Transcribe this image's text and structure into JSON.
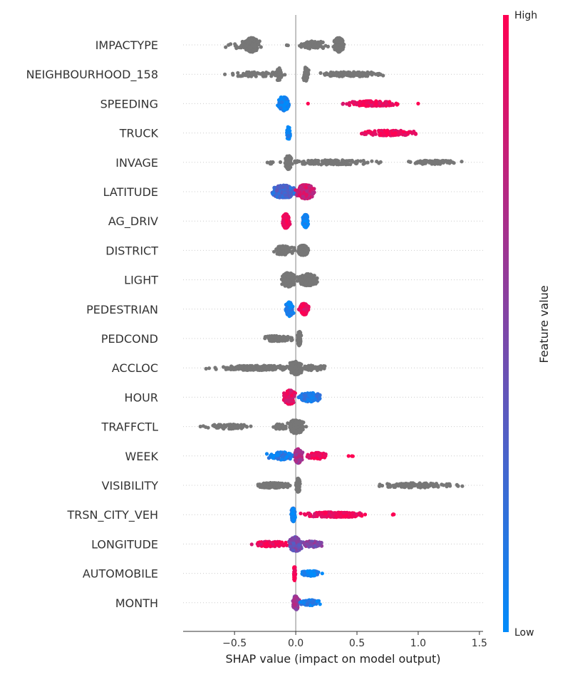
{
  "chart_data": {
    "type": "scatter",
    "subtype": "shap-beeswarm",
    "title": "",
    "xlabel": "SHAP value (impact on model output)",
    "xlim": [
      -0.92,
      1.53
    ],
    "x_ticks": [
      {
        "value": -0.5,
        "label": "−0.5"
      },
      {
        "value": 0.0,
        "label": "0.0"
      },
      {
        "value": 0.5,
        "label": "0.5"
      },
      {
        "value": 1.0,
        "label": "1.0"
      },
      {
        "value": 1.5,
        "label": "1.5"
      }
    ],
    "grid": false,
    "colorbar": {
      "title": "Feature value",
      "high_label": "High",
      "low_label": "Low",
      "low_color": "#008bfb",
      "high_color": "#ff0052",
      "no_value_color": "#777777"
    },
    "features": [
      {
        "name": "IMPACTYPE",
        "colored": false,
        "clusters": [
          {
            "c": -0.36,
            "spread": 0.07,
            "n": 220,
            "h": 0.55
          },
          {
            "c": -0.42,
            "spread": 0.2,
            "n": 40,
            "h": 0.3
          },
          {
            "c": -0.06,
            "spread": 0.02,
            "n": 2,
            "h": 0.05
          },
          {
            "c": 0.35,
            "spread": 0.05,
            "n": 200,
            "h": 0.55
          },
          {
            "c": 0.15,
            "spread": 0.17,
            "n": 60,
            "h": 0.3
          }
        ]
      },
      {
        "name": "NEIGHBOURHOOD_158",
        "colored": false,
        "clusters": [
          {
            "c": -0.32,
            "spread": 0.32,
            "n": 70,
            "h": 0.18
          },
          {
            "c": -0.14,
            "spread": 0.03,
            "n": 50,
            "h": 0.5
          },
          {
            "c": 0.08,
            "spread": 0.03,
            "n": 50,
            "h": 0.55
          },
          {
            "c": 0.45,
            "spread": 0.38,
            "n": 110,
            "h": 0.18
          }
        ]
      },
      {
        "name": "SPEEDING",
        "colored": true,
        "clusters": [
          {
            "c": -0.1,
            "spread": 0.06,
            "n": 130,
            "h": 0.55,
            "v": 0.05
          },
          {
            "c": 0.62,
            "spread": 0.28,
            "n": 170,
            "h": 0.2,
            "v": 0.95
          },
          {
            "c": 1.0,
            "spread": 0.0,
            "n": 1,
            "h": 0.0,
            "v": 1.0
          },
          {
            "c": 0.1,
            "spread": 0.0,
            "n": 1,
            "h": 0.0,
            "v": 1.0
          }
        ]
      },
      {
        "name": "TRUCK",
        "colored": true,
        "clusters": [
          {
            "c": -0.06,
            "spread": 0.02,
            "n": 60,
            "h": 0.5,
            "v": 0.05
          },
          {
            "c": 0.77,
            "spread": 0.26,
            "n": 180,
            "h": 0.2,
            "v": 0.95
          }
        ]
      },
      {
        "name": "INVAGE",
        "colored": false,
        "clusters": [
          {
            "c": -0.06,
            "spread": 0.03,
            "n": 80,
            "h": 0.55
          },
          {
            "c": 0.3,
            "spread": 0.5,
            "n": 120,
            "h": 0.18
          },
          {
            "c": 1.12,
            "spread": 0.28,
            "n": 80,
            "h": 0.15
          },
          {
            "c": -0.2,
            "spread": 0.04,
            "n": 10,
            "h": 0.12
          }
        ]
      },
      {
        "name": "LATITUDE",
        "colored": true,
        "clusters": [
          {
            "c": -0.1,
            "spread": 0.12,
            "n": 220,
            "h": 0.5,
            "v": 0.25
          },
          {
            "c": 0.08,
            "spread": 0.09,
            "n": 200,
            "h": 0.55,
            "v": 0.8
          }
        ]
      },
      {
        "name": "AG_DRIV",
        "colored": true,
        "clusters": [
          {
            "c": -0.08,
            "spread": 0.04,
            "n": 150,
            "h": 0.55,
            "v": 0.95
          },
          {
            "c": 0.08,
            "spread": 0.03,
            "n": 120,
            "h": 0.5,
            "v": 0.05
          }
        ]
      },
      {
        "name": "DISTRICT",
        "colored": false,
        "clusters": [
          {
            "c": -0.1,
            "spread": 0.1,
            "n": 110,
            "h": 0.35
          },
          {
            "c": 0.06,
            "spread": 0.06,
            "n": 110,
            "h": 0.4
          }
        ]
      },
      {
        "name": "LIGHT",
        "colored": false,
        "clusters": [
          {
            "c": -0.06,
            "spread": 0.08,
            "n": 160,
            "h": 0.55
          },
          {
            "c": 0.1,
            "spread": 0.1,
            "n": 140,
            "h": 0.45
          }
        ]
      },
      {
        "name": "PEDESTRIAN",
        "colored": true,
        "clusters": [
          {
            "c": -0.05,
            "spread": 0.04,
            "n": 110,
            "h": 0.55,
            "v": 0.05
          },
          {
            "c": 0.07,
            "spread": 0.05,
            "n": 110,
            "h": 0.45,
            "v": 0.95
          }
        ]
      },
      {
        "name": "PEDCOND",
        "colored": false,
        "clusters": [
          {
            "c": -0.15,
            "spread": 0.16,
            "n": 90,
            "h": 0.22
          },
          {
            "c": 0.03,
            "spread": 0.02,
            "n": 90,
            "h": 0.55
          }
        ]
      },
      {
        "name": "ACCLOC",
        "colored": false,
        "clusters": [
          {
            "c": -0.3,
            "spread": 0.48,
            "n": 230,
            "h": 0.18
          },
          {
            "c": 0.0,
            "spread": 0.07,
            "n": 120,
            "h": 0.55
          },
          {
            "c": 0.15,
            "spread": 0.15,
            "n": 50,
            "h": 0.2
          }
        ]
      },
      {
        "name": "HOUR",
        "colored": true,
        "clusters": [
          {
            "c": -0.05,
            "spread": 0.06,
            "n": 150,
            "h": 0.55,
            "v": 0.9
          },
          {
            "c": 0.12,
            "spread": 0.12,
            "n": 120,
            "h": 0.35,
            "v": 0.15
          }
        ]
      },
      {
        "name": "TRAFFCTL",
        "colored": false,
        "clusters": [
          {
            "c": -0.55,
            "spread": 0.25,
            "n": 80,
            "h": 0.18
          },
          {
            "c": 0.0,
            "spread": 0.09,
            "n": 150,
            "h": 0.55
          },
          {
            "c": -0.12,
            "spread": 0.09,
            "n": 40,
            "h": 0.2
          }
        ]
      },
      {
        "name": "WEEK",
        "colored": true,
        "clusters": [
          {
            "c": -0.12,
            "spread": 0.13,
            "n": 90,
            "h": 0.3,
            "v": 0.1
          },
          {
            "c": 0.02,
            "spread": 0.04,
            "n": 120,
            "h": 0.55,
            "v": 0.65
          },
          {
            "c": 0.18,
            "spread": 0.1,
            "n": 90,
            "h": 0.25,
            "v": 0.95
          },
          {
            "c": 0.45,
            "spread": 0.04,
            "n": 3,
            "h": 0.05,
            "v": 1.0
          }
        ]
      },
      {
        "name": "VISIBILITY",
        "colored": false,
        "clusters": [
          {
            "c": -0.18,
            "spread": 0.2,
            "n": 140,
            "h": 0.2
          },
          {
            "c": 0.02,
            "spread": 0.02,
            "n": 80,
            "h": 0.55
          },
          {
            "c": 1.0,
            "spread": 0.41,
            "n": 110,
            "h": 0.18
          }
        ]
      },
      {
        "name": "TRSN_CITY_VEH",
        "colored": true,
        "clusters": [
          {
            "c": -0.02,
            "spread": 0.02,
            "n": 100,
            "h": 0.55,
            "v": 0.05
          },
          {
            "c": 0.32,
            "spread": 0.32,
            "n": 220,
            "h": 0.2,
            "v": 0.95
          },
          {
            "c": 0.8,
            "spread": 0.02,
            "n": 3,
            "h": 0.05,
            "v": 1.0
          }
        ]
      },
      {
        "name": "LONGITUDE",
        "colored": true,
        "clusters": [
          {
            "c": -0.2,
            "spread": 0.17,
            "n": 120,
            "h": 0.2,
            "v": 0.95
          },
          {
            "c": 0.0,
            "spread": 0.07,
            "n": 220,
            "h": 0.55,
            "v": 0.45
          },
          {
            "c": 0.14,
            "spread": 0.1,
            "n": 90,
            "h": 0.25,
            "v": 0.5
          }
        ]
      },
      {
        "name": "AUTOMOBILE",
        "colored": true,
        "clusters": [
          {
            "c": -0.01,
            "spread": 0.01,
            "n": 60,
            "h": 0.55,
            "v": 0.95
          },
          {
            "c": 0.12,
            "spread": 0.1,
            "n": 100,
            "h": 0.2,
            "v": 0.05
          }
        ]
      },
      {
        "name": "MONTH",
        "colored": true,
        "clusters": [
          {
            "c": 0.0,
            "spread": 0.03,
            "n": 120,
            "h": 0.55,
            "v": 0.6
          },
          {
            "c": 0.12,
            "spread": 0.1,
            "n": 100,
            "h": 0.22,
            "v": 0.1
          }
        ]
      }
    ]
  }
}
